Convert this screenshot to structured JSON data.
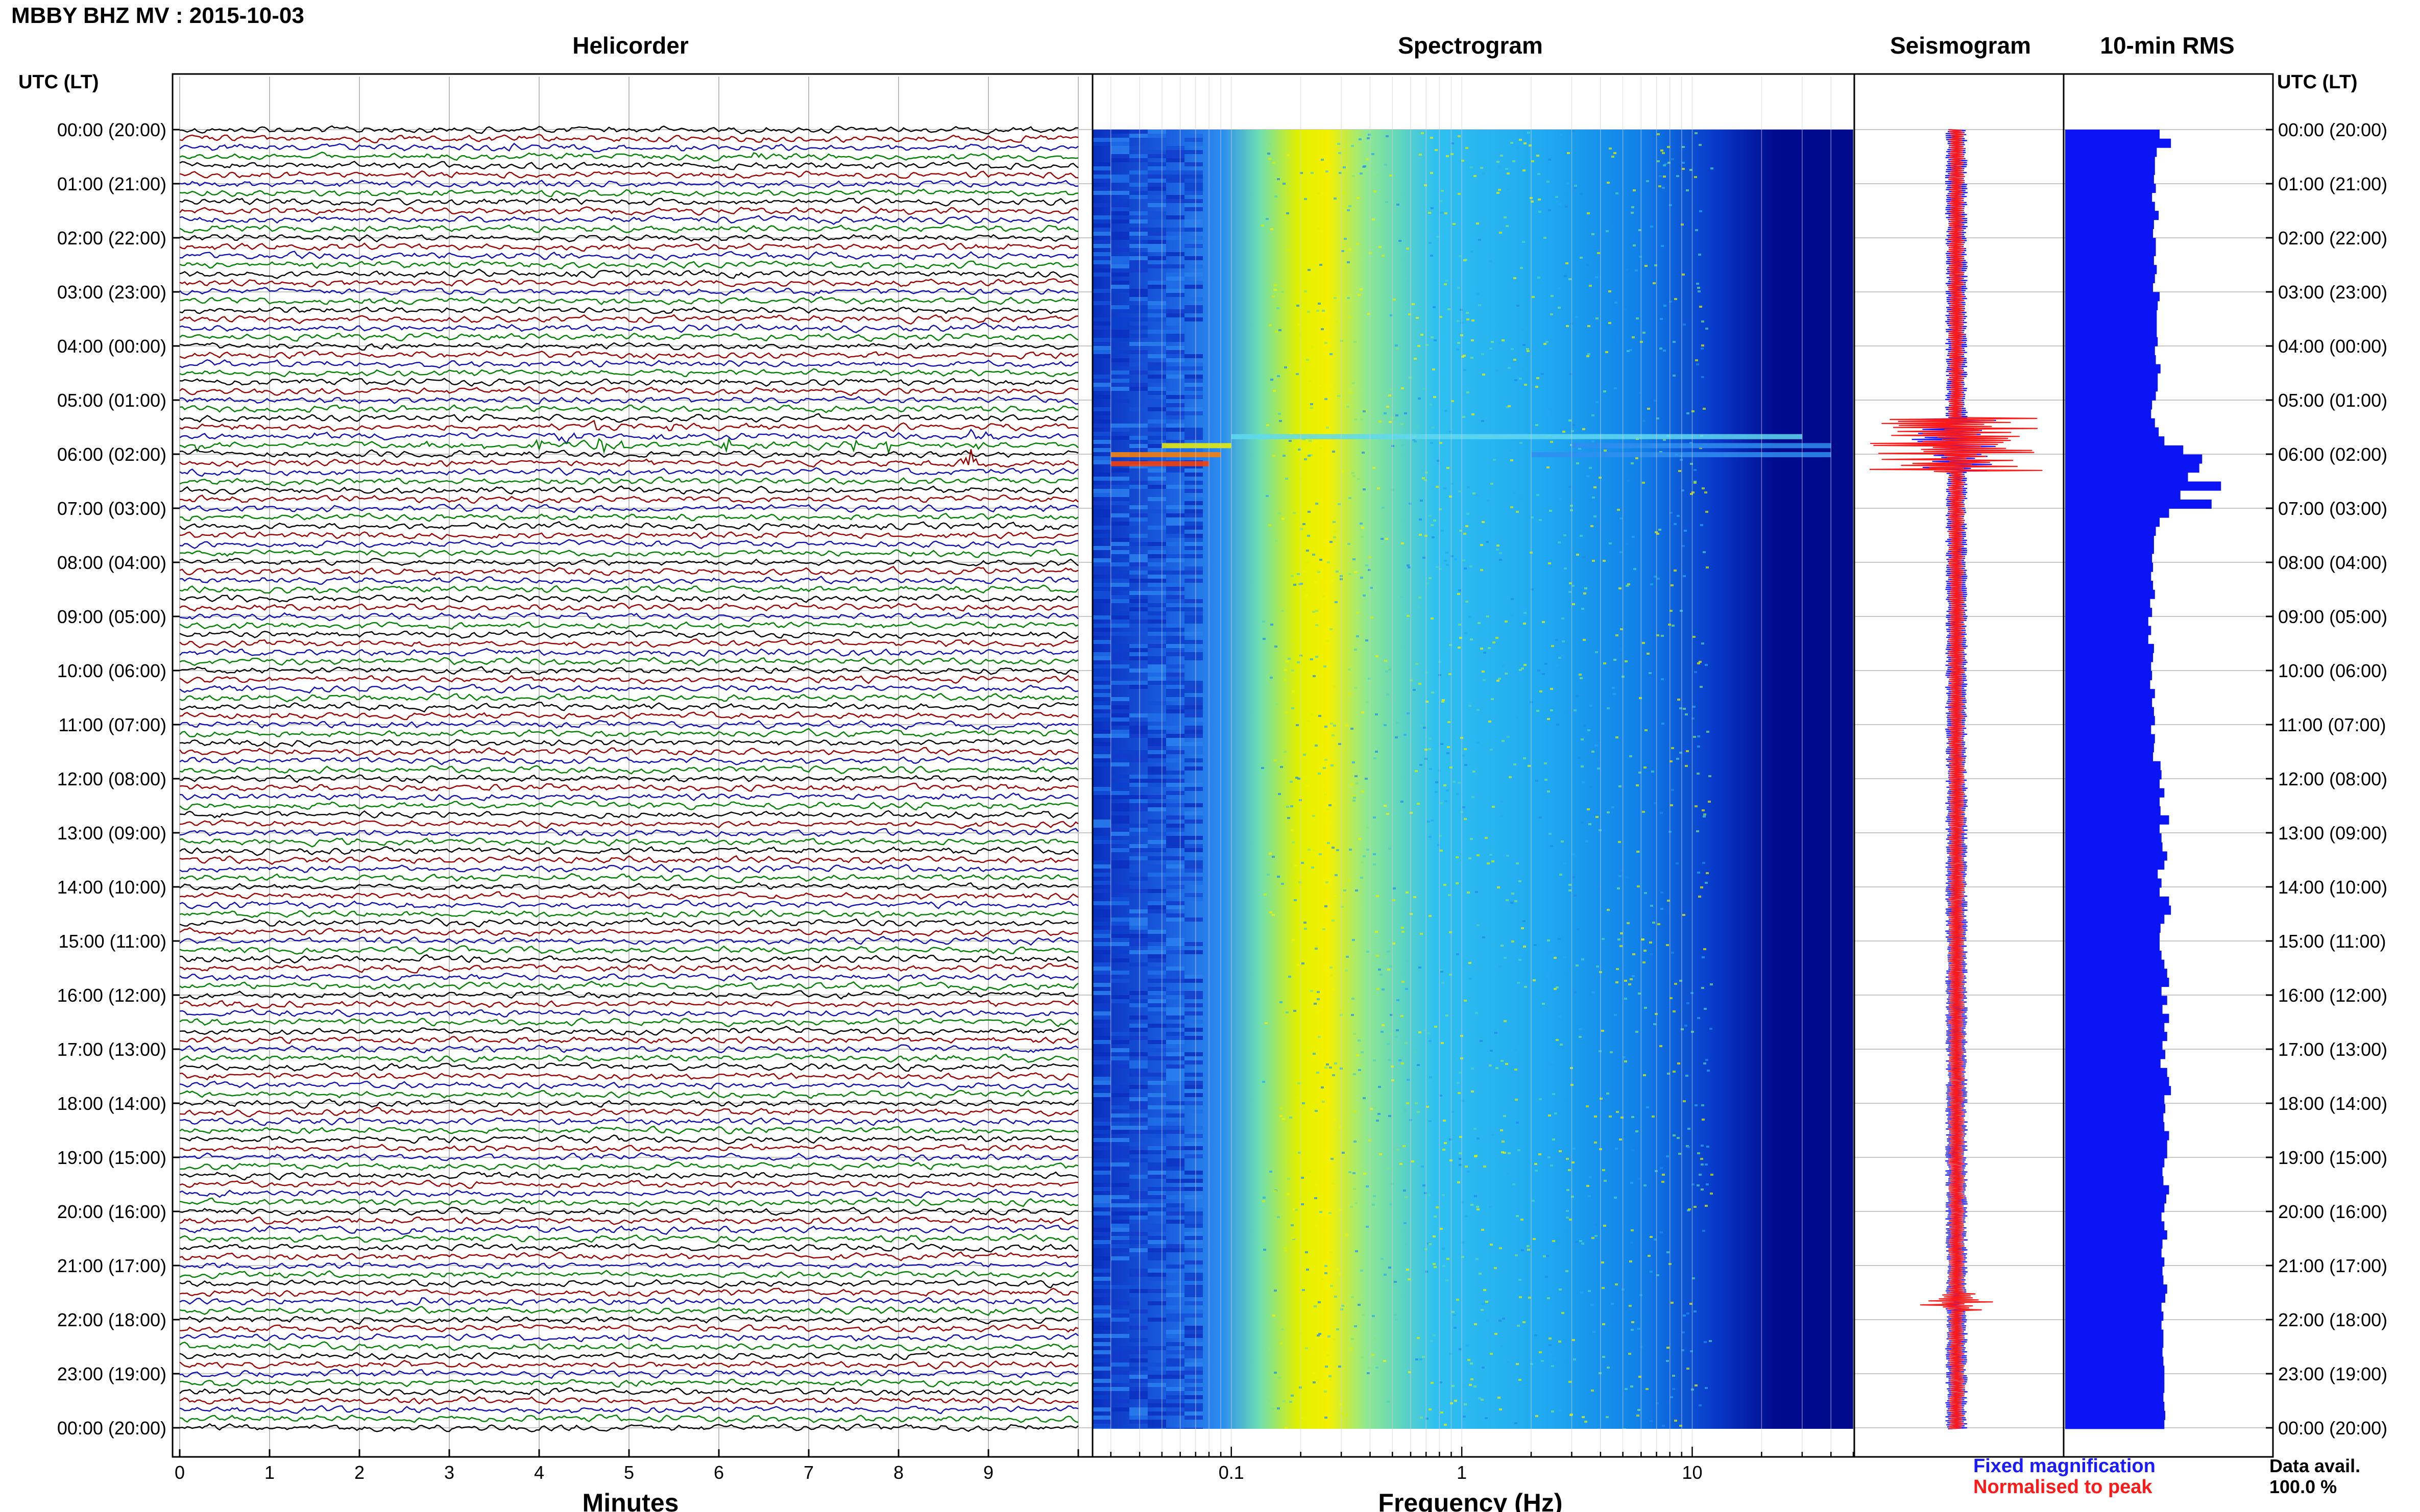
{
  "header": {
    "title": "MBBY BHZ MV : 2015-10-03"
  },
  "panels": {
    "helicorder": "Helicorder",
    "spectrogram": "Spectrogram",
    "seismogram": "Seismogram",
    "rms": "10-min RMS"
  },
  "axis": {
    "utc_label_left": "UTC (LT)",
    "utc_label_right": "UTC (LT)",
    "minutes_label": "Minutes",
    "frequency_label": "Frequency (Hz)"
  },
  "legend": {
    "fixed": "Fixed magnification",
    "normalised": "Normalised to peak",
    "fixed_color": "#1a1aff",
    "normalised_color": "#ff1a1a"
  },
  "availability": {
    "label": "Data avail.",
    "value": "100.0 %"
  },
  "colors": {
    "trace_cycle": [
      "#000000",
      "#9b0000",
      "#1010b0",
      "#008000"
    ],
    "rms_bar": "#0a14f5"
  },
  "chart_data": [
    {
      "type": "line",
      "title": "Helicorder",
      "xlabel": "Minutes",
      "x_ticks": [
        0,
        1,
        2,
        3,
        4,
        5,
        6,
        7,
        8,
        9
      ],
      "xlim": [
        0,
        10
      ],
      "lines_per_hour": 6,
      "hours_shown": 24,
      "time_labels": [
        "00:00 (20:00)",
        "01:00 (21:00)",
        "02:00 (22:00)",
        "03:00 (23:00)",
        "04:00 (00:00)",
        "05:00 (01:00)",
        "06:00 (02:00)",
        "07:00 (03:00)",
        "08:00 (04:00)",
        "09:00 (05:00)",
        "10:00 (06:00)",
        "11:00 (07:00)",
        "12:00 (08:00)",
        "13:00 (09:00)",
        "14:00 (10:00)",
        "15:00 (11:00)",
        "16:00 (12:00)",
        "17:00 (13:00)",
        "18:00 (14:00)",
        "19:00 (15:00)",
        "20:00 (16:00)",
        "21:00 (17:00)",
        "22:00 (18:00)",
        "23:00 (19:00)",
        "00:00 (20:00)"
      ],
      "events": [
        {
          "line": 35,
          "minute": 0.2,
          "amp": 3.0
        },
        {
          "line": 34,
          "minute": 1.5,
          "amp": 1.8
        },
        {
          "line": 35,
          "minute": 2.8,
          "amp": 1.2
        },
        {
          "line": 35,
          "minute": 3.4,
          "amp": 1.8
        },
        {
          "line": 35,
          "minute": 4.0,
          "amp": 1.5
        },
        {
          "line": 34,
          "minute": 4.3,
          "amp": 2.5
        },
        {
          "line": 33,
          "minute": 4.6,
          "amp": 2.0
        },
        {
          "line": 35,
          "minute": 4.7,
          "amp": 3.5
        },
        {
          "line": 35,
          "minute": 4.9,
          "amp": 2.5
        },
        {
          "line": 34,
          "minute": 5.3,
          "amp": 1.5
        },
        {
          "line": 33,
          "minute": 5.4,
          "amp": 2.0
        },
        {
          "line": 35,
          "minute": 6.1,
          "amp": 2.5
        },
        {
          "line": 35,
          "minute": 7.5,
          "amp": 1.5
        },
        {
          "line": 35,
          "minute": 7.9,
          "amp": 2.8
        },
        {
          "line": 34,
          "minute": 8.8,
          "amp": 1.5
        },
        {
          "line": 35,
          "minute": 8.9,
          "amp": 3.0
        },
        {
          "line": 37,
          "minute": 8.8,
          "amp": 4.5
        },
        {
          "line": 34,
          "minute": 9.0,
          "amp": 1.8
        },
        {
          "line": 3,
          "minute": 6.4,
          "amp": 1.2
        },
        {
          "line": 2,
          "minute": 3.7,
          "amp": 1.0
        },
        {
          "line": 130,
          "minute": 2.7,
          "amp": 1.5
        }
      ]
    },
    {
      "type": "heatmap",
      "title": "Spectrogram",
      "xlabel": "Frequency (Hz)",
      "x_scale": "log",
      "x_ticks": [
        0.1,
        1,
        10
      ],
      "xlim": [
        0.025,
        50
      ],
      "colormap": "jet"
    },
    {
      "type": "line",
      "title": "Seismogram",
      "series": [
        {
          "name": "Fixed magnification",
          "color": "#1a1aff"
        },
        {
          "name": "Normalised to peak",
          "color": "#ff1a1a"
        }
      ]
    },
    {
      "type": "bar",
      "title": "10-min RMS",
      "orientation": "horizontal",
      "bins": 144,
      "values": [
        1.0,
        1.12,
        0.97,
        0.95,
        0.95,
        0.94,
        0.96,
        0.92,
        0.95,
        0.99,
        0.94,
        0.93,
        0.96,
        0.96,
        0.94,
        0.97,
        0.95,
        0.93,
        1.0,
        0.98,
        0.97,
        0.97,
        0.97,
        0.98,
        0.95,
        0.96,
        1.01,
        0.98,
        0.98,
        0.96,
        0.92,
        0.91,
        0.95,
        0.99,
        1.05,
        1.25,
        1.45,
        1.42,
        1.3,
        1.65,
        1.22,
        1.55,
        1.1,
        1.0,
        0.96,
        0.94,
        0.94,
        0.92,
        0.93,
        0.91,
        0.93,
        0.95,
        0.9,
        0.92,
        0.88,
        0.91,
        0.88,
        0.94,
        0.93,
        0.91,
        0.92,
        0.9,
        0.95,
        0.92,
        0.94,
        0.95,
        0.91,
        0.95,
        0.94,
        0.93,
        1.01,
        1.02,
        1.0,
        1.05,
        1.0,
        1.01,
        1.1,
        1.0,
        1.02,
        1.03,
        1.08,
        1.05,
        0.98,
        1.02,
        1.0,
        1.1,
        1.12,
        1.05,
        1.01,
        1.0,
        1.0,
        1.02,
        1.05,
        1.08,
        1.1,
        1.02,
        1.08,
        1.03,
        1.1,
        1.05,
        1.08,
        1.03,
        1.06,
        1.01,
        1.08,
        1.1,
        1.12,
        1.05,
        1.06,
        1.04,
        1.05,
        1.1,
        1.08,
        1.08,
        1.05,
        1.03,
        1.04,
        1.1,
        1.07,
        1.05,
        1.02,
        1.05,
        1.08,
        1.03,
        1.02,
        1.05,
        1.03,
        1.04,
        1.08,
        1.06,
        1.02,
        1.04,
        1.02,
        1.04,
        1.04,
        1.03,
        1.04,
        1.05,
        1.05,
        1.05,
        1.04,
        1.05,
        1.06,
        1.05
      ]
    }
  ]
}
